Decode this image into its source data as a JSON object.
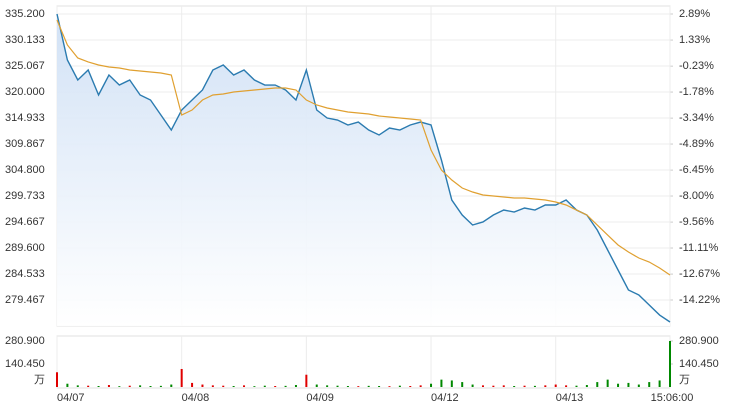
{
  "chart_data": {
    "type": "line",
    "up_color": "#e00000",
    "down_color": "#008800",
    "grid": true,
    "series": [
      {
        "color": "#2b7bb0",
        "fill": "#dbe8f8",
        "values": [
          335.2,
          326.24,
          322.34,
          324.29,
          319.42,
          323.31,
          321.36,
          322.34,
          319.42,
          318.44,
          315.52,
          312.59,
          316.49,
          318.44,
          320.39,
          324.29,
          325.26,
          323.31,
          324.29,
          322.34,
          321.36,
          321.36,
          320.39,
          318.44,
          324.29,
          316.49,
          314.93,
          314.54,
          313.57,
          314.15,
          312.59,
          311.62,
          312.98,
          312.59,
          313.57,
          314.15,
          313.57,
          306.75,
          298.95,
          296.03,
          294.08,
          294.67,
          296.03,
          297.0,
          296.61,
          297.39,
          297.0,
          297.98,
          297.98,
          298.95,
          297.0,
          296.03,
          293.11,
          289.21,
          285.31,
          281.42,
          280.44,
          278.49,
          276.54,
          275.18
        ]
      },
      {
        "color": "#e0a030",
        "values": [
          334.03,
          329.16,
          326.63,
          325.85,
          325.26,
          324.87,
          324.68,
          324.29,
          324.09,
          323.9,
          323.7,
          323.31,
          315.52,
          316.49,
          318.44,
          319.42,
          319.61,
          320.0,
          320.19,
          320.39,
          320.58,
          320.78,
          320.78,
          320.39,
          318.44,
          317.47,
          316.88,
          316.49,
          316.1,
          315.91,
          315.71,
          315.32,
          315.13,
          314.93,
          314.74,
          314.54,
          308.7,
          304.8,
          302.85,
          301.29,
          300.51,
          299.93,
          299.73,
          299.54,
          299.34,
          299.34,
          299.15,
          298.95,
          298.56,
          297.98,
          297.0,
          296.03,
          294.08,
          292.13,
          290.19,
          288.82,
          287.65,
          286.87,
          285.7,
          284.34
        ]
      }
    ],
    "ylim": [
      274.4,
      335.2
    ],
    "yticks": [
      {
        "value": 335.2,
        "label": "335.200"
      },
      {
        "value": 330.133,
        "label": "330.133"
      },
      {
        "value": 325.067,
        "label": "325.067"
      },
      {
        "value": 320,
        "label": "320.000"
      },
      {
        "value": 314.933,
        "label": "314.933"
      },
      {
        "value": 309.867,
        "label": "309.867"
      },
      {
        "value": 304.8,
        "label": "304.800"
      },
      {
        "value": 299.733,
        "label": "299.733"
      },
      {
        "value": 294.667,
        "label": "294.667"
      },
      {
        "value": 289.6,
        "label": "289.600"
      },
      {
        "value": 284.533,
        "label": "284.533"
      },
      {
        "value": 279.467,
        "label": "279.467"
      }
    ],
    "y2lim": [
      -15.775,
      2.89
    ],
    "y2ticks": [
      {
        "value": 2.89,
        "label": "2.89%"
      },
      {
        "value": 1.33,
        "label": "1.33%"
      },
      {
        "value": -0.23,
        "label": "-0.23%"
      },
      {
        "value": -1.78,
        "label": "-1.78%"
      },
      {
        "value": -3.34,
        "label": "-3.34%"
      },
      {
        "value": -4.89,
        "label": "-4.89%"
      },
      {
        "value": -6.45,
        "label": "-6.45%"
      },
      {
        "value": -8.0,
        "label": "-8.00%"
      },
      {
        "value": -9.56,
        "label": "-9.56%"
      },
      {
        "value": -11.11,
        "label": "-11.11%"
      },
      {
        "value": -12.67,
        "label": "-12.67%"
      },
      {
        "value": -14.22,
        "label": "-14.22%"
      }
    ],
    "xticks": [
      {
        "value": 0,
        "label": "04/07"
      },
      {
        "value": 12,
        "label": "04/08"
      },
      {
        "value": 24,
        "label": "04/09"
      },
      {
        "value": 36,
        "label": "04/12"
      },
      {
        "value": 48,
        "label": "04/13"
      },
      {
        "value": 59,
        "label": "15:06:00"
      }
    ],
    "volume": {
      "unit": "万",
      "ylim": [
        0,
        280.9
      ],
      "yticks": [
        {
          "value": 280.9,
          "label": "280.900"
        },
        {
          "value": 140.45,
          "label": "140.450"
        }
      ],
      "values": [
        90,
        20,
        10,
        8,
        6,
        12,
        5,
        8,
        10,
        6,
        7,
        15,
        110,
        25,
        15,
        10,
        8,
        6,
        10,
        5,
        8,
        6,
        7,
        12,
        75,
        15,
        10,
        8,
        6,
        5,
        7,
        6,
        5,
        8,
        6,
        10,
        20,
        45,
        40,
        30,
        15,
        10,
        8,
        10,
        6,
        8,
        7,
        10,
        15,
        10,
        8,
        12,
        30,
        45,
        20,
        25,
        15,
        30,
        40,
        280.9
      ]
    }
  }
}
